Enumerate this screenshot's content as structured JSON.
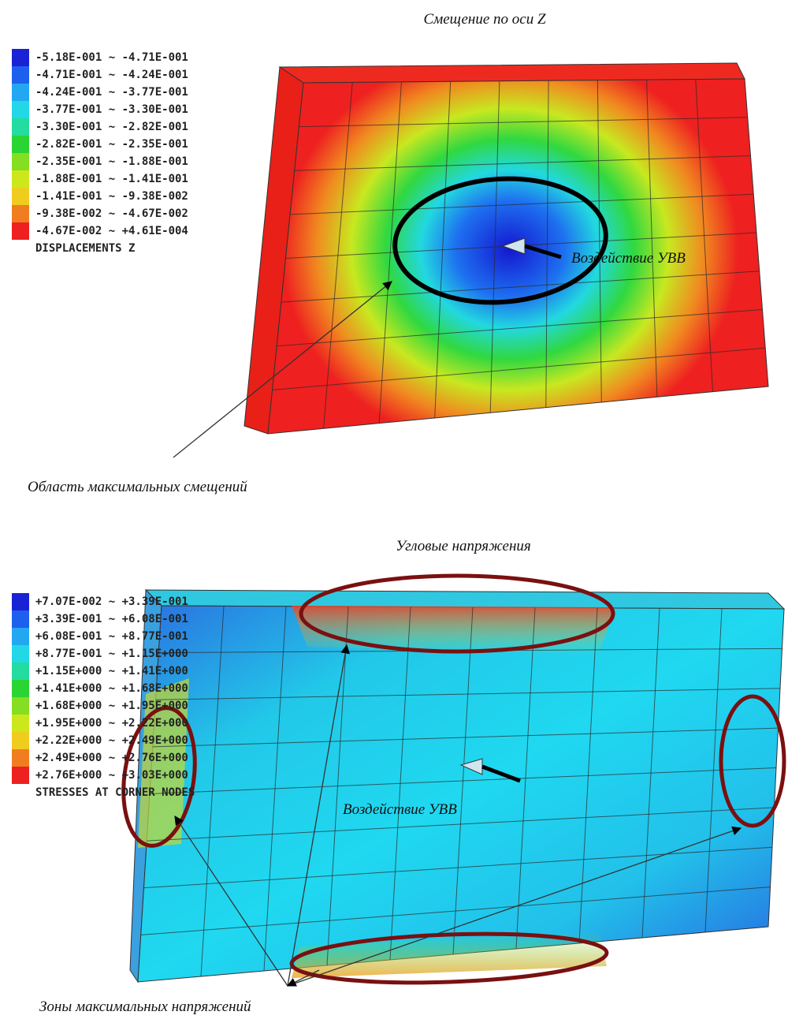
{
  "panels": [
    {
      "title": "Смещение по оси Z",
      "legend": {
        "items": [
          {
            "label": "-5.18E-001 ~ -4.71E-001",
            "color": "#1a22d6"
          },
          {
            "label": "-4.71E-001 ~ -4.24E-001",
            "color": "#1e60ee"
          },
          {
            "label": "-4.24E-001 ~ -3.77E-001",
            "color": "#22a8f0"
          },
          {
            "label": "-3.77E-001 ~ -3.30E-001",
            "color": "#22d8e6"
          },
          {
            "label": "-3.30E-001 ~ -2.82E-001",
            "color": "#22dca0"
          },
          {
            "label": "-2.82E-001 ~ -2.35E-001",
            "color": "#2ad432"
          },
          {
            "label": "-2.35E-001 ~ -1.88E-001",
            "color": "#84de22"
          },
          {
            "label": "-1.88E-001 ~ -1.41E-001",
            "color": "#cce81a"
          },
          {
            "label": "-1.41E-001 ~ -9.38E-002",
            "color": "#f0cc1e"
          },
          {
            "label": "-9.38E-002 ~ -4.67E-002",
            "color": "#f07e20"
          },
          {
            "label": "-4.67E-002 ~ +4.61E-004",
            "color": "#ee2020"
          }
        ],
        "title": "DISPLACEMENTS Z"
      },
      "load": "Воздействие УВВ",
      "callout": "Область максимальных смещений"
    },
    {
      "title": "Угловые напряжения",
      "legend": {
        "items": [
          {
            "label": "+7.07E-002 ~ +3.39E-001",
            "color": "#1a22d6"
          },
          {
            "label": "+3.39E-001 ~ +6.08E-001",
            "color": "#1e60ee"
          },
          {
            "label": "+6.08E-001 ~ +8.77E-001",
            "color": "#22a8f0"
          },
          {
            "label": "+8.77E-001 ~ +1.15E+000",
            "color": "#22d8e6"
          },
          {
            "label": "+1.15E+000 ~ +1.41E+000",
            "color": "#22dca0"
          },
          {
            "label": "+1.41E+000 ~ +1.68E+000",
            "color": "#2ad432"
          },
          {
            "label": "+1.68E+000 ~ +1.95E+000",
            "color": "#84de22"
          },
          {
            "label": "+1.95E+000 ~ +2.22E+000",
            "color": "#cce81a"
          },
          {
            "label": "+2.22E+000 ~ +2.49E+000",
            "color": "#f0cc1e"
          },
          {
            "label": "+2.49E+000 ~ +2.76E+000",
            "color": "#f07e20"
          },
          {
            "label": "+2.76E+000 ~ +3.03E+000",
            "color": "#ee2020"
          }
        ],
        "title": "STRESSES AT CORNER NODES"
      },
      "load": "Воздействие УВВ",
      "callout": "Зоны максимальных напряжений"
    }
  ]
}
